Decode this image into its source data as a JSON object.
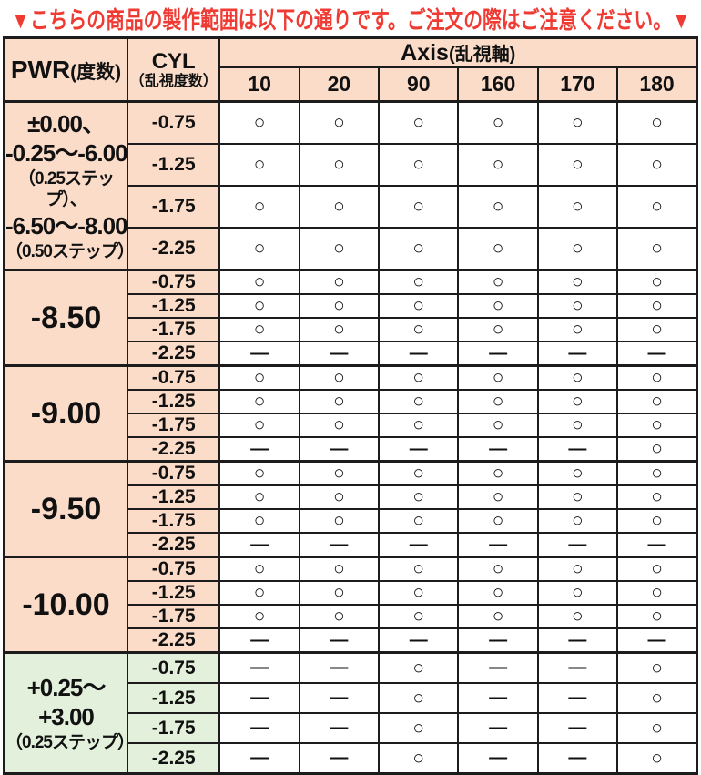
{
  "title": "▼こちらの商品の製作範囲は以下の通りです。ご注文の際はご注意ください。▼",
  "colors": {
    "title_red": "#ef3b33",
    "pink": "#fadcc9",
    "green": "#e3f0dc",
    "border": "#1c1c1c"
  },
  "table": {
    "headers": {
      "pwr_label": "PWR",
      "pwr_sub": "(度数)",
      "cyl_label": "CYL",
      "cyl_sub": "（乱視度数）",
      "axis_label": "Axis",
      "axis_sub": "(乱視軸)",
      "axis_values": [
        "10",
        "20",
        "90",
        "160",
        "170",
        "180"
      ]
    },
    "symbols": {
      "available": "○",
      "unavailable": "—"
    },
    "groups": [
      {
        "theme": "pink",
        "row_height": "tall",
        "pwr_lines": [
          {
            "text": "±0.00、",
            "small": false
          },
          {
            "text": "-0.25〜-6.00",
            "small": false
          },
          {
            "text": "（0.25ステップ）、",
            "small": true
          },
          {
            "text": "-6.50〜-8.00",
            "small": false
          },
          {
            "text": "（0.50ステップ）",
            "small": true
          }
        ],
        "rows": [
          {
            "cyl": "-0.75",
            "cells": [
              "○",
              "○",
              "○",
              "○",
              "○",
              "○"
            ]
          },
          {
            "cyl": "-1.25",
            "cells": [
              "○",
              "○",
              "○",
              "○",
              "○",
              "○"
            ]
          },
          {
            "cyl": "-1.75",
            "cells": [
              "○",
              "○",
              "○",
              "○",
              "○",
              "○"
            ]
          },
          {
            "cyl": "-2.25",
            "cells": [
              "○",
              "○",
              "○",
              "○",
              "○",
              "○"
            ]
          }
        ]
      },
      {
        "theme": "pink",
        "row_height": "short",
        "pwr_lines": [
          {
            "text": "-8.50",
            "small": false
          }
        ],
        "rows": [
          {
            "cyl": "-0.75",
            "cells": [
              "○",
              "○",
              "○",
              "○",
              "○",
              "○"
            ]
          },
          {
            "cyl": "-1.25",
            "cells": [
              "○",
              "○",
              "○",
              "○",
              "○",
              "○"
            ]
          },
          {
            "cyl": "-1.75",
            "cells": [
              "○",
              "○",
              "○",
              "○",
              "○",
              "○"
            ]
          },
          {
            "cyl": "-2.25",
            "cells": [
              "—",
              "—",
              "—",
              "—",
              "—",
              "—"
            ]
          }
        ]
      },
      {
        "theme": "pink",
        "row_height": "short",
        "pwr_lines": [
          {
            "text": "-9.00",
            "small": false
          }
        ],
        "rows": [
          {
            "cyl": "-0.75",
            "cells": [
              "○",
              "○",
              "○",
              "○",
              "○",
              "○"
            ]
          },
          {
            "cyl": "-1.25",
            "cells": [
              "○",
              "○",
              "○",
              "○",
              "○",
              "○"
            ]
          },
          {
            "cyl": "-1.75",
            "cells": [
              "○",
              "○",
              "○",
              "○",
              "○",
              "○"
            ]
          },
          {
            "cyl": "-2.25",
            "cells": [
              "—",
              "—",
              "—",
              "—",
              "—",
              "○"
            ]
          }
        ]
      },
      {
        "theme": "pink",
        "row_height": "short",
        "pwr_lines": [
          {
            "text": "-9.50",
            "small": false
          }
        ],
        "rows": [
          {
            "cyl": "-0.75",
            "cells": [
              "○",
              "○",
              "○",
              "○",
              "○",
              "○"
            ]
          },
          {
            "cyl": "-1.25",
            "cells": [
              "○",
              "○",
              "○",
              "○",
              "○",
              "○"
            ]
          },
          {
            "cyl": "-1.75",
            "cells": [
              "○",
              "○",
              "○",
              "○",
              "○",
              "○"
            ]
          },
          {
            "cyl": "-2.25",
            "cells": [
              "—",
              "—",
              "—",
              "—",
              "—",
              "—"
            ]
          }
        ]
      },
      {
        "theme": "pink",
        "row_height": "short",
        "pwr_lines": [
          {
            "text": "-10.00",
            "small": false
          }
        ],
        "rows": [
          {
            "cyl": "-0.75",
            "cells": [
              "○",
              "○",
              "○",
              "○",
              "○",
              "○"
            ]
          },
          {
            "cyl": "-1.25",
            "cells": [
              "○",
              "○",
              "○",
              "○",
              "○",
              "○"
            ]
          },
          {
            "cyl": "-1.75",
            "cells": [
              "○",
              "○",
              "○",
              "○",
              "○",
              "○"
            ]
          },
          {
            "cyl": "-2.25",
            "cells": [
              "—",
              "—",
              "—",
              "—",
              "—",
              "—"
            ]
          }
        ]
      },
      {
        "theme": "green",
        "row_height": "med",
        "pwr_lines": [
          {
            "text": "+0.25〜",
            "small": false
          },
          {
            "text": "+3.00",
            "small": false
          },
          {
            "text": "（0.25ステップ）",
            "small": true
          }
        ],
        "rows": [
          {
            "cyl": "-0.75",
            "cells": [
              "—",
              "—",
              "○",
              "—",
              "—",
              "○"
            ]
          },
          {
            "cyl": "-1.25",
            "cells": [
              "—",
              "—",
              "○",
              "—",
              "—",
              "○"
            ]
          },
          {
            "cyl": "-1.75",
            "cells": [
              "—",
              "—",
              "○",
              "—",
              "—",
              "○"
            ]
          },
          {
            "cyl": "-2.25",
            "cells": [
              "—",
              "—",
              "○",
              "—",
              "—",
              "○"
            ]
          }
        ]
      }
    ]
  }
}
